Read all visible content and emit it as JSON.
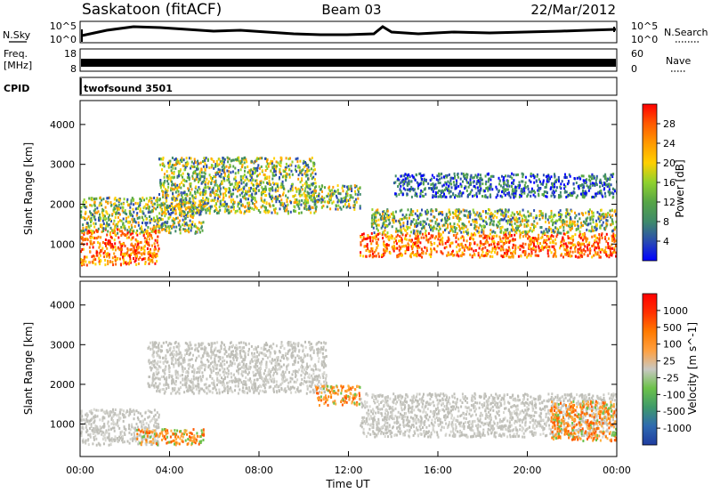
{
  "header": {
    "title": "Saskatoon (fitACF)",
    "beam": "Beam 03",
    "date": "22/Mar/2012"
  },
  "nsky_panel": {
    "left_label": "N.Sky",
    "left_ticks": [
      "10^5",
      "10^0"
    ],
    "right_label": "N.Search",
    "right_ticks": [
      "10^5",
      "10^0"
    ]
  },
  "freq_panel": {
    "left_label_1": "Freq.",
    "left_label_2": "[MHz]",
    "left_ticks": [
      "18",
      "8"
    ],
    "right_label": "Nave",
    "right_ticks": [
      "60",
      "0"
    ]
  },
  "cpid_panel": {
    "label": "CPID",
    "program": "twofsound 3501"
  },
  "chart_data": [
    {
      "type": "heatmap",
      "title": "",
      "xlabel": "Time UT",
      "ylabel": "Slant Range [km]",
      "x_ticks": [
        "00:00",
        "04:00",
        "08:00",
        "12:00",
        "16:00",
        "20:00",
        "00:00"
      ],
      "xlim": [
        0,
        24
      ],
      "y_ticks": [
        1000,
        2000,
        3000,
        4000
      ],
      "ylim": [
        180,
        4600
      ],
      "colorbar_label": "Power [dB]",
      "colorbar_ticks": [
        "28",
        "24",
        "20",
        "16",
        "12",
        "8",
        "4"
      ],
      "colorbar_colors": [
        "#0000ff",
        "#2a4cb0",
        "#3f8a6a",
        "#56a546",
        "#8fd12e",
        "#ffd000",
        "#ff9a00",
        "#ff5a00",
        "#ff0000"
      ],
      "echo_regions": [
        {
          "t": [
            0.0,
            3.5
          ],
          "range": [
            500,
            1400
          ],
          "level": "high"
        },
        {
          "t": [
            0.0,
            5.5
          ],
          "range": [
            1300,
            2200
          ],
          "level": "medium"
        },
        {
          "t": [
            3.5,
            10.5
          ],
          "range": [
            1800,
            3200
          ],
          "level": "medium"
        },
        {
          "t": [
            10.0,
            12.5
          ],
          "range": [
            1900,
            2500
          ],
          "level": "medium"
        },
        {
          "t": [
            12.5,
            24.0
          ],
          "range": [
            700,
            1300
          ],
          "level": "high"
        },
        {
          "t": [
            13.0,
            24.0
          ],
          "range": [
            1300,
            1900
          ],
          "level": "medium"
        },
        {
          "t": [
            14.0,
            24.0
          ],
          "range": [
            2200,
            2800
          ],
          "level": "low"
        }
      ]
    },
    {
      "type": "heatmap",
      "title": "",
      "xlabel": "Time UT",
      "ylabel": "Slant Range [km]",
      "x_ticks": [
        "00:00",
        "04:00",
        "08:00",
        "12:00",
        "16:00",
        "20:00",
        "00:00"
      ],
      "xlim": [
        0,
        24
      ],
      "y_ticks": [
        1000,
        2000,
        3000,
        4000
      ],
      "ylim": [
        180,
        4600
      ],
      "colorbar_label": "Velocity [m s^-1]",
      "colorbar_ticks": [
        "1000",
        "500",
        "100",
        "25",
        "-25",
        "-100",
        "-500",
        "-1000"
      ],
      "colorbar_colors": [
        "#1f3ca0",
        "#2f6ab0",
        "#3f9a6a",
        "#6cc24a",
        "#c8c8c2",
        "#ffa040",
        "#ff7a00",
        "#ff3000",
        "#ff0000"
      ],
      "echo_regions": [
        {
          "t": [
            0.0,
            3.5
          ],
          "range": [
            500,
            1400
          ],
          "level": "ground"
        },
        {
          "t": [
            2.5,
            5.5
          ],
          "range": [
            500,
            900
          ],
          "level": "away"
        },
        {
          "t": [
            3.0,
            11.0
          ],
          "range": [
            1800,
            3100
          ],
          "level": "ground"
        },
        {
          "t": [
            10.5,
            12.5
          ],
          "range": [
            1500,
            2000
          ],
          "level": "away"
        },
        {
          "t": [
            12.5,
            24.0
          ],
          "range": [
            700,
            1800
          ],
          "level": "ground"
        },
        {
          "t": [
            21.0,
            24.0
          ],
          "range": [
            600,
            1600
          ],
          "level": "away"
        }
      ]
    }
  ]
}
